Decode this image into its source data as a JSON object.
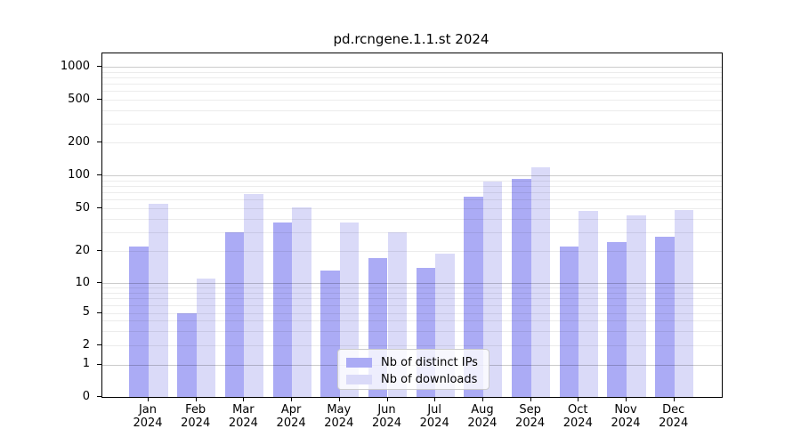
{
  "chart_data": {
    "type": "bar",
    "title": "pd.rcngene.1.1.st 2024",
    "x_year": "2024",
    "months": [
      "Jan",
      "Feb",
      "Mar",
      "Apr",
      "May",
      "Jun",
      "Jul",
      "Aug",
      "Sep",
      "Oct",
      "Nov",
      "Dec"
    ],
    "series": [
      {
        "name": "Nb of distinct IPs",
        "color": "#ababf5",
        "values": [
          22,
          5,
          30,
          37,
          13,
          17,
          14,
          64,
          93,
          22,
          24,
          27
        ]
      },
      {
        "name": "Nb of downloads",
        "color": "#dadaf8",
        "values": [
          55,
          11,
          68,
          51,
          37,
          30,
          19,
          88,
          119,
          47,
          43,
          48
        ]
      }
    ],
    "y_tick_values": [
      0,
      1,
      2,
      5,
      10,
      20,
      50,
      100,
      200,
      500,
      1000
    ],
    "ylim": [
      0,
      1200
    ],
    "yscale": "log-like (linear 0-1 segment, logarithmic above)",
    "grid": "horizontal, major at decades + minor log subdivisions",
    "legend_position": "inside plot, lower center-left",
    "bar_grouping": "two bars per month, side by side"
  }
}
